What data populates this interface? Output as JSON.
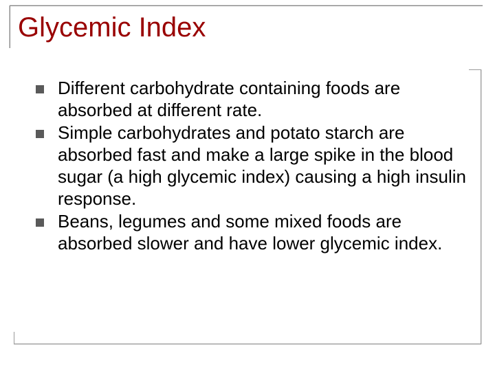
{
  "slide": {
    "title": "Glycemic Index",
    "title_color": "#990000",
    "title_fontsize": 40,
    "background_color": "#ffffff",
    "bullet_marker_color": "#5a5a5a",
    "text_color": "#000000",
    "body_fontsize": 26,
    "border_color": "#888888",
    "bullets": [
      {
        "text": "Different carbohydrate containing foods are absorbed at different rate."
      },
      {
        "text": "Simple carbohydrates and potato starch are absorbed fast and make a large spike in the blood sugar (a high glycemic index) causing a high insulin response."
      },
      {
        "text": "Beans, legumes and some mixed foods are absorbed slower and have lower glycemic index."
      }
    ]
  }
}
